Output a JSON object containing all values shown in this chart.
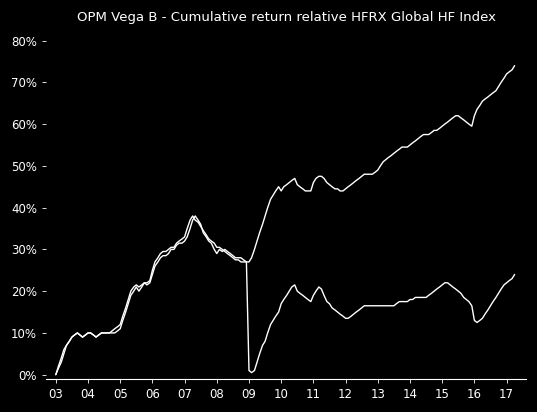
{
  "title": "OPM Vega B - Cumulative return relative HFRX Global HF Index",
  "background_color": "#000000",
  "text_color": "#ffffff",
  "line_color": "#ffffff",
  "ylim": [
    -0.01,
    0.82
  ],
  "yticks": [
    0.0,
    0.1,
    0.2,
    0.3,
    0.4,
    0.5,
    0.6,
    0.7,
    0.8
  ],
  "xlim": [
    2002.7,
    2017.6
  ],
  "xtick_labels": [
    "03",
    "04",
    "05",
    "06",
    "07",
    "08",
    "09",
    "10",
    "11",
    "12",
    "13",
    "14",
    "15",
    "16",
    "17"
  ],
  "xtick_positions": [
    2003,
    2004,
    2005,
    2006,
    2007,
    2008,
    2009,
    2010,
    2011,
    2012,
    2013,
    2014,
    2015,
    2016,
    2017
  ],
  "series1_x": [
    2003.0,
    2003.08,
    2003.17,
    2003.25,
    2003.33,
    2003.42,
    2003.5,
    2003.58,
    2003.67,
    2003.75,
    2003.83,
    2003.92,
    2004.0,
    2004.08,
    2004.17,
    2004.25,
    2004.33,
    2004.42,
    2004.5,
    2004.58,
    2004.67,
    2004.75,
    2004.83,
    2004.92,
    2005.0,
    2005.08,
    2005.17,
    2005.25,
    2005.33,
    2005.42,
    2005.5,
    2005.58,
    2005.67,
    2005.75,
    2005.83,
    2005.92,
    2006.0,
    2006.08,
    2006.17,
    2006.25,
    2006.33,
    2006.42,
    2006.5,
    2006.58,
    2006.67,
    2006.75,
    2006.83,
    2006.92,
    2007.0,
    2007.08,
    2007.17,
    2007.25,
    2007.33,
    2007.42,
    2007.5,
    2007.58,
    2007.67,
    2007.75,
    2007.83,
    2007.92,
    2008.0,
    2008.08,
    2008.17,
    2008.25,
    2008.33,
    2008.42,
    2008.5,
    2008.58,
    2008.67,
    2008.75,
    2008.83,
    2008.92,
    2009.0,
    2009.08,
    2009.17,
    2009.25,
    2009.33,
    2009.42,
    2009.5,
    2009.58,
    2009.67,
    2009.75,
    2009.83,
    2009.92,
    2010.0,
    2010.08,
    2010.17,
    2010.25,
    2010.33,
    2010.42,
    2010.5,
    2010.58,
    2010.67,
    2010.75,
    2010.83,
    2010.92,
    2011.0,
    2011.08,
    2011.17,
    2011.25,
    2011.33,
    2011.42,
    2011.5,
    2011.58,
    2011.67,
    2011.75,
    2011.83,
    2011.92,
    2012.0,
    2012.08,
    2012.17,
    2012.25,
    2012.33,
    2012.42,
    2012.5,
    2012.58,
    2012.67,
    2012.75,
    2012.83,
    2012.92,
    2013.0,
    2013.08,
    2013.17,
    2013.25,
    2013.33,
    2013.42,
    2013.5,
    2013.58,
    2013.67,
    2013.75,
    2013.83,
    2013.92,
    2014.0,
    2014.08,
    2014.17,
    2014.25,
    2014.33,
    2014.42,
    2014.5,
    2014.58,
    2014.67,
    2014.75,
    2014.83,
    2014.92,
    2015.0,
    2015.08,
    2015.17,
    2015.25,
    2015.33,
    2015.42,
    2015.5,
    2015.58,
    2015.67,
    2015.75,
    2015.83,
    2015.92,
    2016.0,
    2016.08,
    2016.17,
    2016.25,
    2016.33,
    2016.42,
    2016.5,
    2016.58,
    2016.67,
    2016.75,
    2016.83,
    2016.92,
    2017.0,
    2017.08,
    2017.17,
    2017.25
  ],
  "series1_y": [
    0.0,
    0.015,
    0.03,
    0.05,
    0.07,
    0.08,
    0.09,
    0.095,
    0.1,
    0.095,
    0.09,
    0.095,
    0.1,
    0.1,
    0.095,
    0.09,
    0.095,
    0.1,
    0.1,
    0.1,
    0.1,
    0.1,
    0.1,
    0.105,
    0.11,
    0.13,
    0.15,
    0.17,
    0.19,
    0.2,
    0.21,
    0.2,
    0.21,
    0.22,
    0.215,
    0.22,
    0.24,
    0.26,
    0.27,
    0.28,
    0.285,
    0.285,
    0.29,
    0.3,
    0.3,
    0.31,
    0.315,
    0.315,
    0.32,
    0.33,
    0.35,
    0.37,
    0.38,
    0.37,
    0.36,
    0.34,
    0.33,
    0.32,
    0.315,
    0.3,
    0.29,
    0.3,
    0.295,
    0.3,
    0.295,
    0.29,
    0.285,
    0.28,
    0.28,
    0.28,
    0.275,
    0.27,
    0.01,
    0.005,
    0.01,
    0.03,
    0.05,
    0.07,
    0.08,
    0.1,
    0.12,
    0.13,
    0.14,
    0.15,
    0.17,
    0.18,
    0.19,
    0.2,
    0.21,
    0.215,
    0.2,
    0.195,
    0.19,
    0.185,
    0.18,
    0.175,
    0.19,
    0.2,
    0.21,
    0.205,
    0.19,
    0.175,
    0.17,
    0.16,
    0.155,
    0.15,
    0.145,
    0.14,
    0.135,
    0.135,
    0.14,
    0.145,
    0.15,
    0.155,
    0.16,
    0.165,
    0.165,
    0.165,
    0.165,
    0.165,
    0.165,
    0.165,
    0.165,
    0.165,
    0.165,
    0.165,
    0.165,
    0.17,
    0.175,
    0.175,
    0.175,
    0.175,
    0.18,
    0.18,
    0.185,
    0.185,
    0.185,
    0.185,
    0.185,
    0.19,
    0.195,
    0.2,
    0.205,
    0.21,
    0.215,
    0.22,
    0.22,
    0.215,
    0.21,
    0.205,
    0.2,
    0.195,
    0.185,
    0.18,
    0.175,
    0.165,
    0.13,
    0.125,
    0.13,
    0.135,
    0.145,
    0.155,
    0.165,
    0.175,
    0.185,
    0.195,
    0.205,
    0.215,
    0.22,
    0.225,
    0.23,
    0.24
  ],
  "series2_x": [
    2003.0,
    2003.08,
    2003.17,
    2003.25,
    2003.33,
    2003.42,
    2003.5,
    2003.58,
    2003.67,
    2003.75,
    2003.83,
    2003.92,
    2004.0,
    2004.08,
    2004.17,
    2004.25,
    2004.33,
    2004.42,
    2004.5,
    2004.58,
    2004.67,
    2004.75,
    2004.83,
    2004.92,
    2005.0,
    2005.08,
    2005.17,
    2005.25,
    2005.33,
    2005.42,
    2005.5,
    2005.58,
    2005.67,
    2005.75,
    2005.83,
    2005.92,
    2006.0,
    2006.08,
    2006.17,
    2006.25,
    2006.33,
    2006.42,
    2006.5,
    2006.58,
    2006.67,
    2006.75,
    2006.83,
    2006.92,
    2007.0,
    2007.08,
    2007.17,
    2007.25,
    2007.33,
    2007.42,
    2007.5,
    2007.58,
    2007.67,
    2007.75,
    2007.83,
    2007.92,
    2008.0,
    2008.08,
    2008.17,
    2008.25,
    2008.33,
    2008.42,
    2008.5,
    2008.58,
    2008.67,
    2008.75,
    2008.83,
    2008.92,
    2009.0,
    2009.08,
    2009.17,
    2009.25,
    2009.33,
    2009.42,
    2009.5,
    2009.58,
    2009.67,
    2009.75,
    2009.83,
    2009.92,
    2010.0,
    2010.08,
    2010.17,
    2010.25,
    2010.33,
    2010.42,
    2010.5,
    2010.58,
    2010.67,
    2010.75,
    2010.83,
    2010.92,
    2011.0,
    2011.08,
    2011.17,
    2011.25,
    2011.33,
    2011.42,
    2011.5,
    2011.58,
    2011.67,
    2011.75,
    2011.83,
    2011.92,
    2012.0,
    2012.08,
    2012.17,
    2012.25,
    2012.33,
    2012.42,
    2012.5,
    2012.58,
    2012.67,
    2012.75,
    2012.83,
    2012.92,
    2013.0,
    2013.08,
    2013.17,
    2013.25,
    2013.33,
    2013.42,
    2013.5,
    2013.58,
    2013.67,
    2013.75,
    2013.83,
    2013.92,
    2014.0,
    2014.08,
    2014.17,
    2014.25,
    2014.33,
    2014.42,
    2014.5,
    2014.58,
    2014.67,
    2014.75,
    2014.83,
    2014.92,
    2015.0,
    2015.08,
    2015.17,
    2015.25,
    2015.33,
    2015.42,
    2015.5,
    2015.58,
    2015.67,
    2015.75,
    2015.83,
    2015.92,
    2016.0,
    2016.08,
    2016.17,
    2016.25,
    2016.33,
    2016.42,
    2016.5,
    2016.58,
    2016.67,
    2016.75,
    2016.83,
    2016.92,
    2017.0,
    2017.08,
    2017.17,
    2017.25
  ],
  "series2_y": [
    0.0,
    0.02,
    0.04,
    0.06,
    0.07,
    0.08,
    0.09,
    0.095,
    0.1,
    0.095,
    0.09,
    0.095,
    0.1,
    0.1,
    0.095,
    0.09,
    0.095,
    0.1,
    0.1,
    0.1,
    0.1,
    0.105,
    0.11,
    0.115,
    0.12,
    0.14,
    0.16,
    0.18,
    0.2,
    0.21,
    0.215,
    0.21,
    0.215,
    0.22,
    0.22,
    0.225,
    0.25,
    0.27,
    0.28,
    0.29,
    0.295,
    0.295,
    0.3,
    0.305,
    0.305,
    0.315,
    0.32,
    0.325,
    0.33,
    0.35,
    0.37,
    0.38,
    0.37,
    0.365,
    0.355,
    0.345,
    0.335,
    0.325,
    0.32,
    0.315,
    0.305,
    0.305,
    0.3,
    0.295,
    0.29,
    0.285,
    0.28,
    0.275,
    0.275,
    0.27,
    0.27,
    0.27,
    0.27,
    0.28,
    0.3,
    0.32,
    0.34,
    0.36,
    0.38,
    0.4,
    0.42,
    0.43,
    0.44,
    0.45,
    0.44,
    0.45,
    0.455,
    0.46,
    0.465,
    0.47,
    0.455,
    0.45,
    0.445,
    0.44,
    0.44,
    0.44,
    0.46,
    0.47,
    0.475,
    0.475,
    0.47,
    0.46,
    0.455,
    0.45,
    0.445,
    0.445,
    0.44,
    0.44,
    0.445,
    0.45,
    0.455,
    0.46,
    0.465,
    0.47,
    0.475,
    0.48,
    0.48,
    0.48,
    0.48,
    0.485,
    0.49,
    0.5,
    0.51,
    0.515,
    0.52,
    0.525,
    0.53,
    0.535,
    0.54,
    0.545,
    0.545,
    0.545,
    0.55,
    0.555,
    0.56,
    0.565,
    0.57,
    0.575,
    0.575,
    0.575,
    0.58,
    0.585,
    0.585,
    0.59,
    0.595,
    0.6,
    0.605,
    0.61,
    0.615,
    0.62,
    0.62,
    0.615,
    0.61,
    0.605,
    0.6,
    0.595,
    0.62,
    0.635,
    0.645,
    0.655,
    0.66,
    0.665,
    0.67,
    0.675,
    0.68,
    0.69,
    0.7,
    0.71,
    0.72,
    0.725,
    0.73,
    0.74
  ]
}
